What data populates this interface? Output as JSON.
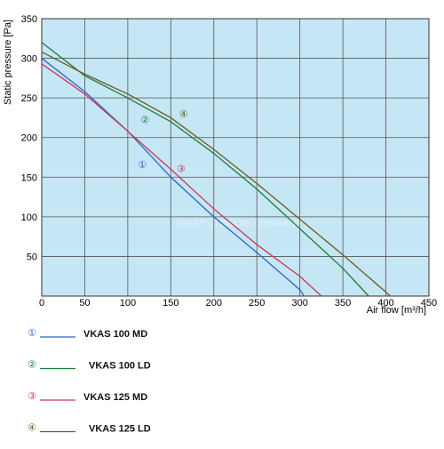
{
  "chart_data": {
    "type": "line",
    "y_label": "Static pressure [Pa]",
    "x_label": "Air flow [m³/h]",
    "watermark": "FIRST CLIMATE COMPANY",
    "xlim": [
      0,
      450
    ],
    "xticks": [
      0,
      50,
      100,
      150,
      200,
      250,
      300,
      350,
      400,
      450
    ],
    "ylim": [
      0,
      350
    ],
    "yticks": [
      50,
      100,
      150,
      200,
      250,
      300,
      350
    ],
    "grid": true,
    "background": "#c5e6f5",
    "series": [
      {
        "name": "VKAS 100 MD",
        "symbol": "①",
        "color": "#2f66c0",
        "x": [
          0,
          50,
          100,
          150,
          200,
          250,
          300,
          305
        ],
        "values": [
          300,
          258,
          208,
          150,
          100,
          55,
          8,
          0
        ]
      },
      {
        "name": "VKAS 100 LD",
        "symbol": "②",
        "color": "#1e7a3a",
        "x": [
          0,
          50,
          100,
          150,
          200,
          250,
          300,
          350,
          380
        ],
        "values": [
          320,
          278,
          250,
          220,
          180,
          135,
          85,
          35,
          0
        ]
      },
      {
        "name": "VKAS 125 MD",
        "symbol": "③",
        "color": "#c8385a",
        "x": [
          0,
          50,
          100,
          150,
          200,
          250,
          300,
          325
        ],
        "values": [
          293,
          255,
          208,
          160,
          110,
          65,
          25,
          0
        ]
      },
      {
        "name": "VKAS 125 LD",
        "symbol": "④",
        "color": "#6b5a1e",
        "x": [
          0,
          50,
          100,
          150,
          200,
          250,
          300,
          350,
          400,
          405
        ],
        "values": [
          308,
          280,
          255,
          225,
          185,
          142,
          97,
          52,
          5,
          0
        ]
      }
    ],
    "annotations": [
      {
        "text": "①",
        "x": 117,
        "y": 168
      },
      {
        "text": "②",
        "x": 120,
        "y": 225
      },
      {
        "text": "③",
        "x": 162,
        "y": 163
      },
      {
        "text": "④",
        "x": 165,
        "y": 232
      }
    ]
  }
}
